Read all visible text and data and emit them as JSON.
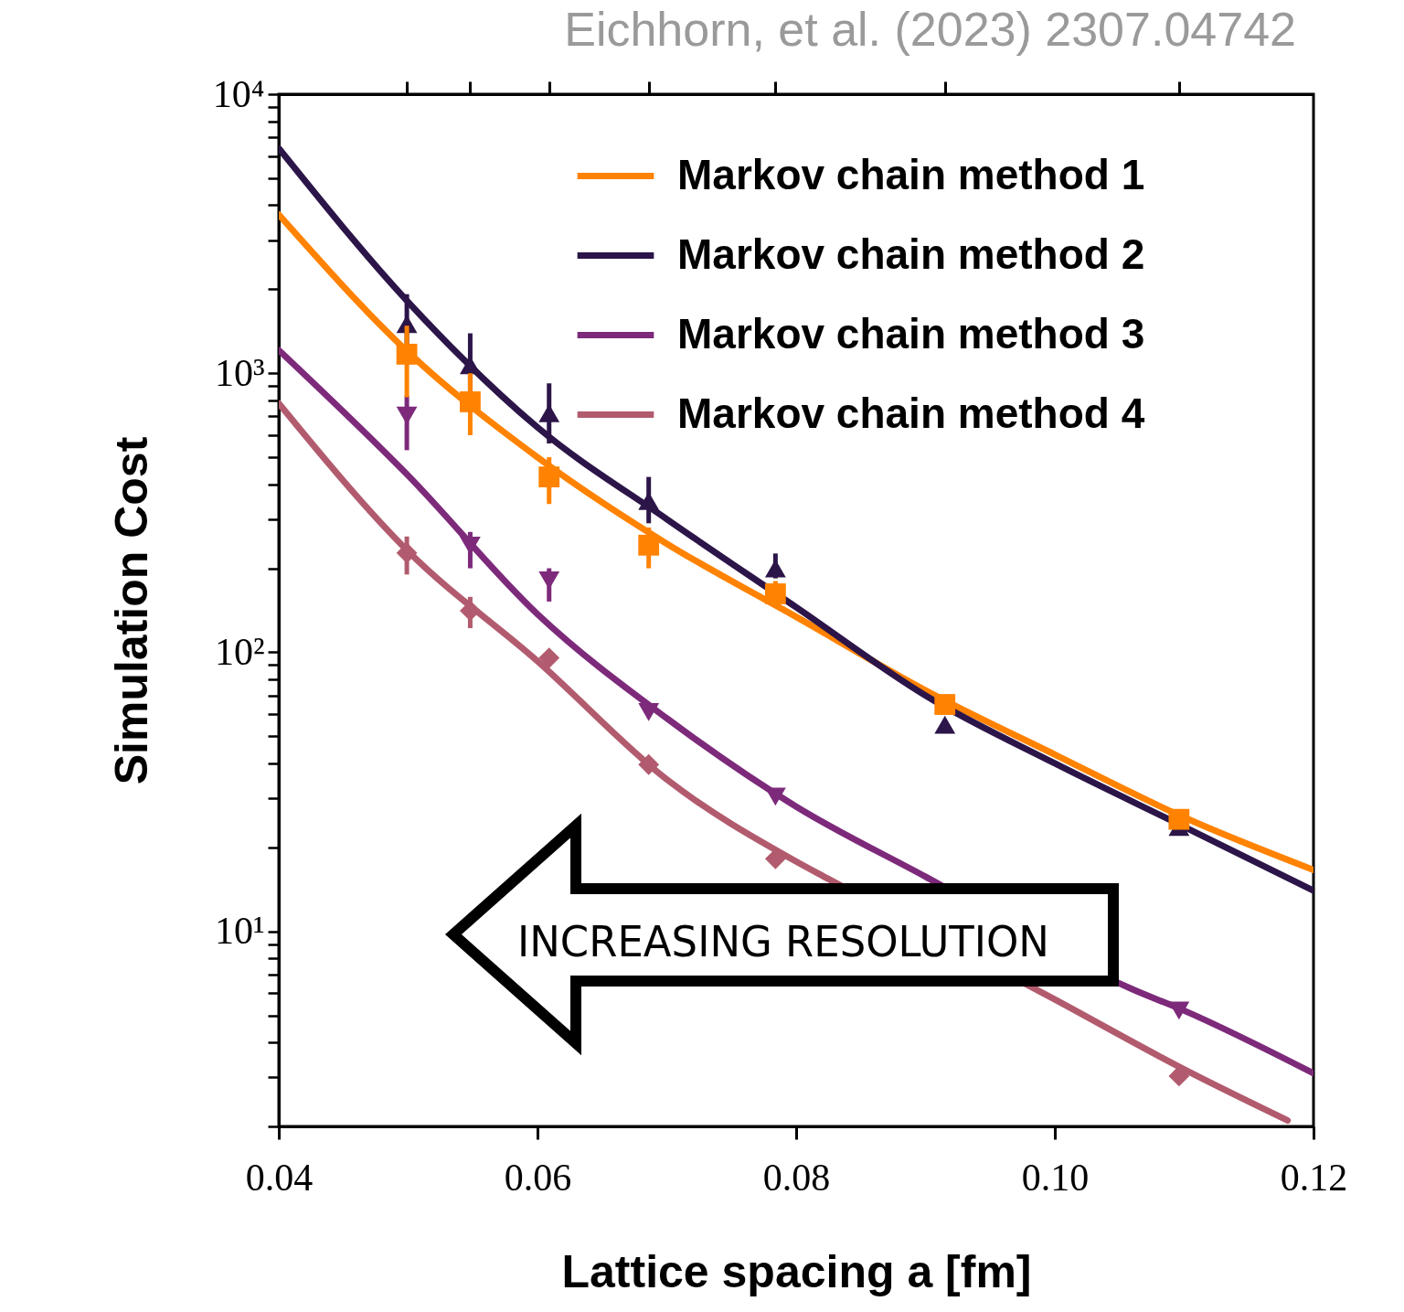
{
  "chart_data": {
    "type": "line",
    "xlabel": "Lattice spacing a [fm]",
    "ylabel": "Simulation Cost",
    "annotations": [
      "Eichhorn, et al. (2023) 2307.04742",
      "INCREASING RESOLUTION"
    ],
    "log": "y",
    "legend": "top right",
    "line_style": "solid",
    "xlim": [
      0.04,
      0.12
    ],
    "xticks": [
      0.04,
      0.06,
      0.08,
      {
        "value": 0.1,
        "label": "0.10"
      },
      0.12
    ],
    "ylim": [
      2,
      10000
    ],
    "yticks": [
      {
        "value": 2,
        "label": null
      },
      {
        "value": 3,
        "label": null
      },
      {
        "value": 4,
        "label": null
      },
      {
        "value": 5,
        "label": null
      },
      {
        "value": 6,
        "label": null
      },
      {
        "value": 7,
        "label": null
      },
      {
        "value": 8,
        "label": null
      },
      {
        "value": 9,
        "label": null
      },
      {
        "value": 10,
        "label": "10¹"
      },
      {
        "value": 20,
        "label": null
      },
      {
        "value": 30,
        "label": null
      },
      {
        "value": 40,
        "label": null
      },
      {
        "value": 50,
        "label": null
      },
      {
        "value": 60,
        "label": null
      },
      {
        "value": 70,
        "label": null
      },
      {
        "value": 80,
        "label": null
      },
      {
        "value": 90,
        "label": null
      },
      {
        "value": 100,
        "label": "10²"
      },
      {
        "value": 200,
        "label": null
      },
      {
        "value": 300,
        "label": null
      },
      {
        "value": 400,
        "label": null
      },
      {
        "value": 500,
        "label": null
      },
      {
        "value": 600,
        "label": null
      },
      {
        "value": 700,
        "label": null
      },
      {
        "value": 800,
        "label": null
      },
      {
        "value": 900,
        "label": null
      },
      {
        "value": 1000,
        "label": "10³"
      },
      {
        "value": 2000,
        "label": null
      },
      {
        "value": 3000,
        "label": null
      },
      {
        "value": 4000,
        "label": null
      },
      {
        "value": 5000,
        "label": null
      },
      {
        "value": 6000,
        "label": null
      },
      {
        "value": 7000,
        "label": null
      },
      {
        "value": 8000,
        "label": null
      },
      {
        "value": 9000,
        "label": null
      },
      {
        "value": 10000,
        "label": "10⁴"
      }
    ],
    "series": [
      {
        "name": "Markov chain method 1",
        "marker": "none",
        "color": "#ff8200",
        "x": [
          0.04,
          0.05,
          0.06,
          0.07,
          0.08,
          0.09,
          0.1,
          0.11,
          0.12
        ],
        "values": [
          3700,
          1190,
          500,
          245,
          134,
          73,
          43,
          25.6,
          16.6
        ]
      },
      {
        "name": "Markov chain method 2",
        "marker": "none",
        "color": "#2c1548",
        "x": [
          0.04,
          0.05,
          0.06,
          0.07,
          0.08,
          0.09,
          0.1,
          0.11,
          0.12
        ],
        "values": [
          6400,
          1800,
          640,
          300,
          145,
          70,
          40,
          23.7,
          14
        ]
      },
      {
        "name": "Markov chain method 3",
        "marker": "none",
        "color": "#7d2a7b",
        "x": [
          0.04,
          0.05,
          0.06,
          0.07,
          0.08,
          0.09,
          0.106,
          0.11,
          0.12
        ],
        "values": [
          1210,
          430,
          137,
          58,
          28,
          15.7,
          6.2,
          5.2,
          3.1
        ]
      },
      {
        "name": "Markov chain method 4",
        "marker": "none",
        "color": "#b25b6e",
        "x": [
          0.04,
          0.05,
          0.06,
          0.07,
          0.08,
          0.0825,
          0.1,
          0.11,
          0.118
        ],
        "values": [
          780,
          230,
          93,
          35,
          17.8,
          15.4,
          5.7,
          3.2,
          2.1
        ]
      },
      {
        "type": "scatter",
        "marker": "square",
        "color": "#ff8200",
        "x": [
          0.0499,
          0.0548,
          0.0609,
          0.0686,
          0.0784,
          0.0915,
          0.1096
        ],
        "values": [
          1170,
          790,
          425,
          242,
          162,
          65,
          25.2
        ],
        "errors": [
          [
            820,
            1480
          ],
          [
            600,
            1000
          ],
          [
            340,
            500
          ],
          [
            200,
            280
          ],
          [
            145,
            180
          ],
          null,
          null
        ]
      },
      {
        "type": "scatter",
        "marker": "triangle",
        "color": "#2c1548",
        "x": [
          0.0499,
          0.0548,
          0.0609,
          0.0686,
          0.0784,
          0.0915,
          0.1096
        ],
        "values": [
          1500,
          1070,
          720,
          349,
          200,
          55,
          23.7
        ],
        "errors": [
          [
            1250,
            1920
          ],
          [
            850,
            1390
          ],
          [
            560,
            920
          ],
          [
            290,
            425
          ],
          [
            184,
            226
          ],
          null,
          null
        ]
      },
      {
        "type": "scatter",
        "marker": "triangle-down",
        "color": "#7d2a7b",
        "x": [
          0.0499,
          0.0548,
          0.0609,
          0.0686,
          0.0784,
          0.0915,
          0.1096
        ],
        "values": [
          705,
          241,
          181,
          61,
          30.4,
          null,
          5.2
        ],
        "errors": [
          [
            530,
            830
          ],
          [
            200,
            270
          ],
          [
            152,
            200
          ],
          null,
          null,
          null,
          null
        ]
      },
      {
        "type": "scatter",
        "marker": "diamond",
        "color": "#b25b6e",
        "x": [
          0.0499,
          0.0548,
          0.0609,
          0.0686,
          0.0784,
          0.0915,
          0.1096
        ],
        "values": [
          227,
          141,
          95.5,
          39.6,
          18.2,
          null,
          3.03
        ],
        "errors": [
          [
            190,
            260
          ],
          [
            122,
            158
          ],
          null,
          null,
          null,
          null,
          null
        ]
      }
    ]
  }
}
